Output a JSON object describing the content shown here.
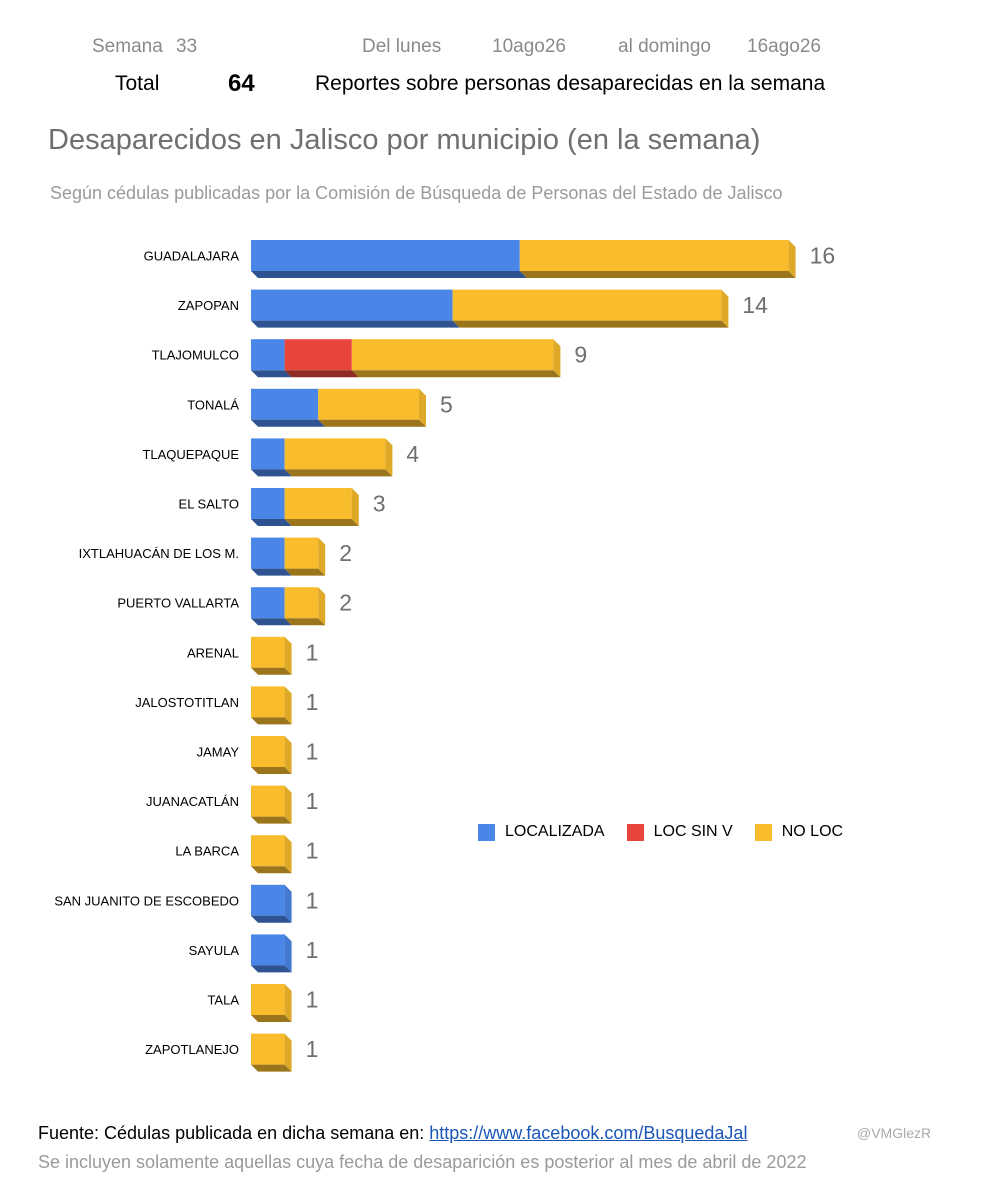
{
  "header": {
    "week_label": "Semana",
    "week_number": "33",
    "from_label": "Del lunes",
    "from_date": "10ago26",
    "to_label": "al domingo",
    "to_date": "16ago26",
    "total_label": "Total",
    "total_value": "64",
    "total_description": "Reportes sobre personas desaparecidas en la semana"
  },
  "chart_data": {
    "type": "bar",
    "orientation": "horizontal",
    "stacked": true,
    "title": "Desaparecidos en Jalisco por municipio (en la semana)",
    "subtitle": "Según cédulas publicadas por la Comisión de Búsqueda de Personas del Estado de Jalisco",
    "categories": [
      "GUADALAJARA",
      "ZAPOPAN",
      "TLAJOMULCO",
      "TONALÁ",
      "TLAQUEPAQUE",
      "EL SALTO",
      "IXTLAHUACÁN DE LOS M.",
      "PUERTO VALLARTA",
      "ARENAL",
      "JALOSTOTITLAN",
      "JAMAY",
      "JUANACATLÁN",
      "LA BARCA",
      "SAN JUANITO DE ESCOBEDO",
      "SAYULA",
      "TALA",
      "ZAPOTLANEJO"
    ],
    "series": [
      {
        "name": "LOCALIZADA",
        "color": "#4a86e8",
        "values": [
          8,
          6,
          1,
          2,
          1,
          1,
          1,
          1,
          0,
          0,
          0,
          0,
          0,
          1,
          1,
          0,
          0
        ]
      },
      {
        "name": "LOC SIN V",
        "color": "#e8453c",
        "values": [
          0,
          0,
          2,
          0,
          0,
          0,
          0,
          0,
          0,
          0,
          0,
          0,
          0,
          0,
          0,
          0,
          0
        ]
      },
      {
        "name": "NO LOC",
        "color": "#f8bc2c",
        "values": [
          8,
          8,
          6,
          3,
          3,
          2,
          1,
          1,
          1,
          1,
          1,
          1,
          1,
          0,
          0,
          1,
          1
        ]
      }
    ],
    "totals": [
      "16",
      "14",
      "9",
      "5",
      "4",
      "3",
      "2",
      "2",
      "1",
      "1",
      "1",
      "1",
      "1",
      "1",
      "1",
      "1",
      "1"
    ],
    "legend_position": "right",
    "grid": false
  },
  "footer": {
    "source_label": "Fuente: Cédulas publicada en dicha semana en: ",
    "source_link": "https://www.facebook.com/BusquedaJal",
    "handle": "@VMGlezR",
    "note": "Se incluyen solamente aquellas cuya fecha de desaparición es posterior al mes de abril de 2022"
  }
}
